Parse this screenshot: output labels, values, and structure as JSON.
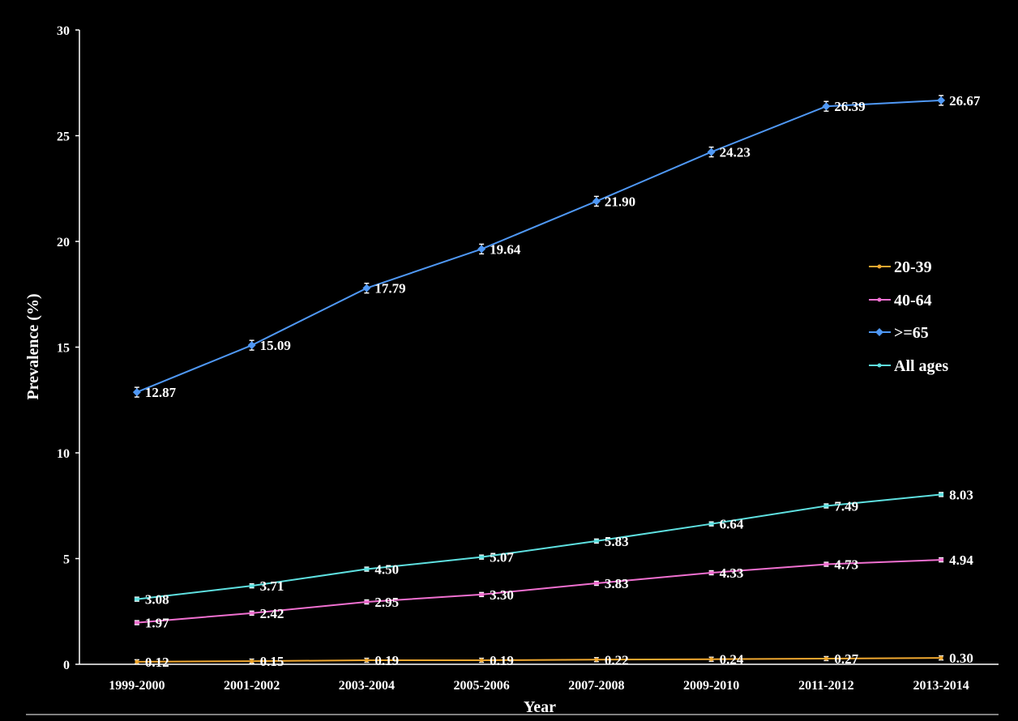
{
  "chart_data": {
    "type": "line",
    "xlabel": "Year",
    "ylabel": "Prevalence (%)",
    "categories": [
      "1999-2000",
      "2001-2002",
      "2003-2004",
      "2005-2006",
      "2007-2008",
      "2009-2010",
      "2011-2012",
      "2013-2014"
    ],
    "ylim": [
      0,
      30
    ],
    "yticks": [
      "0",
      "5",
      "10",
      "15",
      "20",
      "25",
      "30"
    ],
    "grid": false,
    "legend_position": "right",
    "error_bars": true,
    "series": [
      {
        "name": "20-39",
        "color": "#f0a830",
        "marker": "circle",
        "values": [
          0.12,
          0.15,
          0.19,
          0.19,
          0.22,
          0.24,
          0.27,
          0.3
        ],
        "labels": [
          "0.12",
          "0.15",
          "0.19",
          "0.19",
          "0.22",
          "0.24",
          "0.27",
          "0.30"
        ]
      },
      {
        "name": "40-64",
        "color": "#f070d0",
        "marker": "square",
        "values": [
          1.97,
          2.42,
          2.95,
          3.3,
          3.83,
          4.33,
          4.73,
          4.94
        ],
        "labels": [
          "1.97",
          "2.42",
          "2.95",
          "3.30",
          "3.83",
          "4.33",
          "4.73",
          "4.94"
        ]
      },
      {
        "name": ">=65",
        "color": "#4f98f5",
        "marker": "diamond",
        "values": [
          12.87,
          15.09,
          17.79,
          19.64,
          21.9,
          24.23,
          26.39,
          26.67
        ],
        "labels": [
          "12.87",
          "15.09",
          "17.79",
          "19.64",
          "21.90",
          "24.23",
          "26.39",
          "26.67"
        ]
      },
      {
        "name": "All ages",
        "color": "#5ee0e0",
        "marker": "square",
        "values": [
          3.08,
          3.71,
          4.5,
          5.07,
          5.83,
          6.64,
          7.49,
          8.03
        ],
        "labels": [
          "3.08",
          "3.71",
          "4.50",
          "5.07",
          "5.83",
          "6.64",
          "7.49",
          "8.03"
        ]
      }
    ]
  }
}
